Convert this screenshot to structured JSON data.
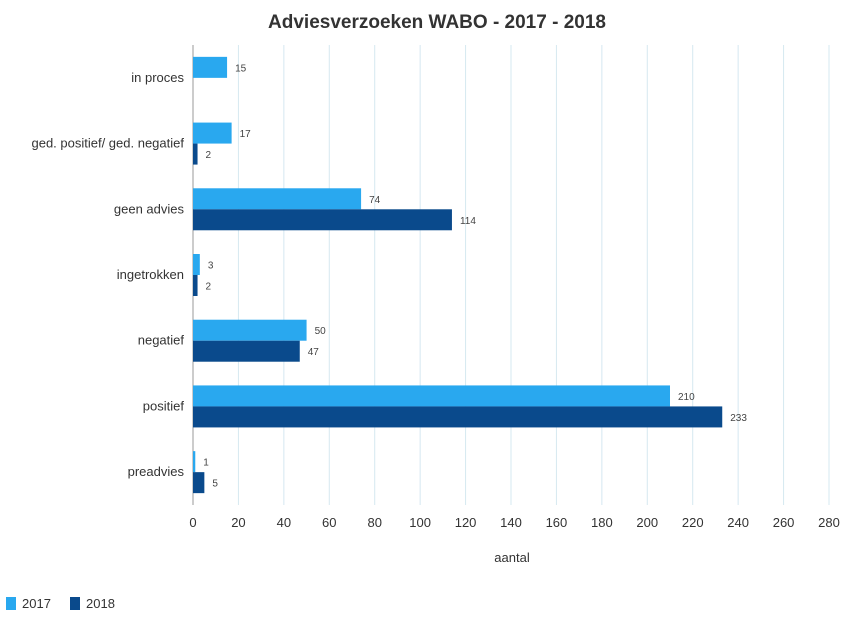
{
  "chart_data": {
    "type": "bar",
    "orientation": "horizontal",
    "title": "Adviesverzoeken WABO - 2017 - 2018",
    "xlabel": "aantal",
    "ylabel": "",
    "categories": [
      "in proces",
      "ged. positief/ ged. negatief",
      "geen advies",
      "ingetrokken",
      "negatief",
      "positief",
      "preadvies"
    ],
    "series": [
      {
        "name": "2017",
        "color": "#29A8EF",
        "values": [
          15,
          17,
          74,
          3,
          50,
          210,
          1
        ]
      },
      {
        "name": "2018",
        "color": "#0A4A8C",
        "values": [
          null,
          2,
          114,
          2,
          47,
          233,
          5
        ]
      }
    ],
    "xlim": [
      0,
      280
    ],
    "xticks": [
      0,
      20,
      40,
      60,
      80,
      100,
      120,
      140,
      160,
      180,
      200,
      220,
      240,
      260,
      280
    ],
    "grid": "vertical",
    "legend": "bottom-left"
  }
}
